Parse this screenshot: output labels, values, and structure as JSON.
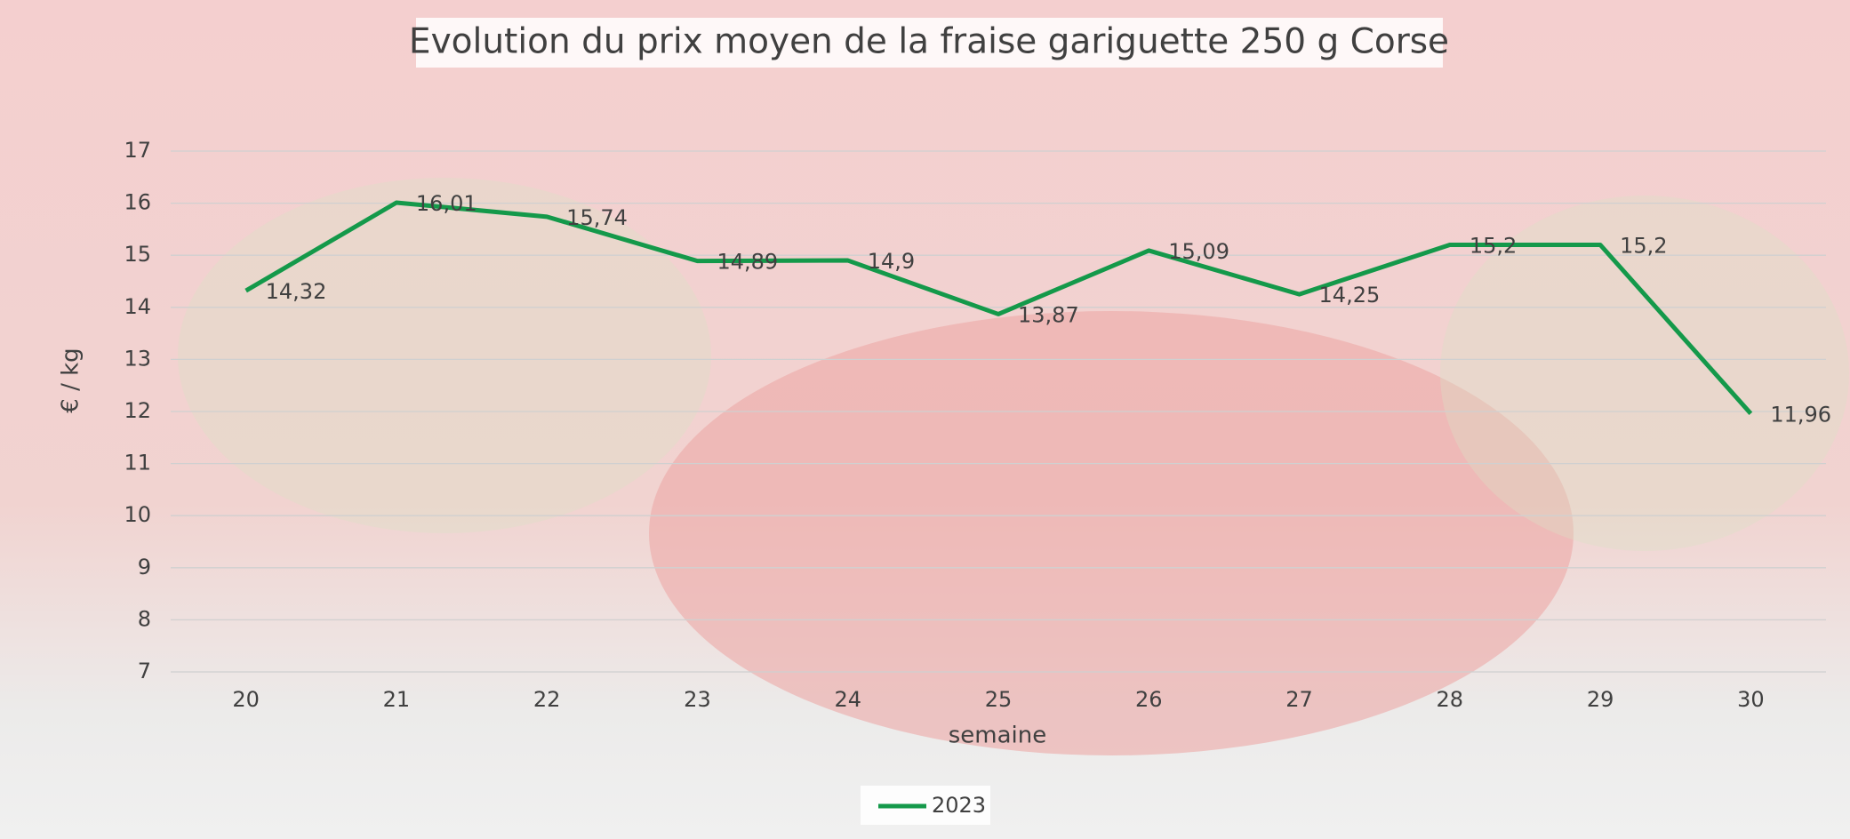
{
  "chart_data": {
    "type": "line",
    "title": "Evolution du prix moyen de la fraise gariguette  250 g Corse",
    "x_label": "semaine",
    "y_label": "€ / kg",
    "categories": [
      "20",
      "21",
      "22",
      "23",
      "24",
      "25",
      "26",
      "27",
      "28",
      "29",
      "30"
    ],
    "series": [
      {
        "name": "2023",
        "color": "#14994a",
        "values": [
          14.32,
          16.01,
          15.74,
          14.89,
          14.9,
          13.87,
          15.09,
          14.25,
          15.2,
          15.2,
          11.96
        ],
        "value_labels": [
          "14,32",
          "16,01",
          "15,74",
          "14,89",
          "14,9",
          "13,87",
          "15,09",
          "14,25",
          "15,2",
          "15,2",
          "11,96"
        ]
      }
    ],
    "ylim": [
      7,
      17
    ],
    "yticks": [
      7,
      8,
      9,
      10,
      11,
      12,
      13,
      14,
      15,
      16,
      17
    ],
    "grid": true,
    "legend": "bottom"
  }
}
